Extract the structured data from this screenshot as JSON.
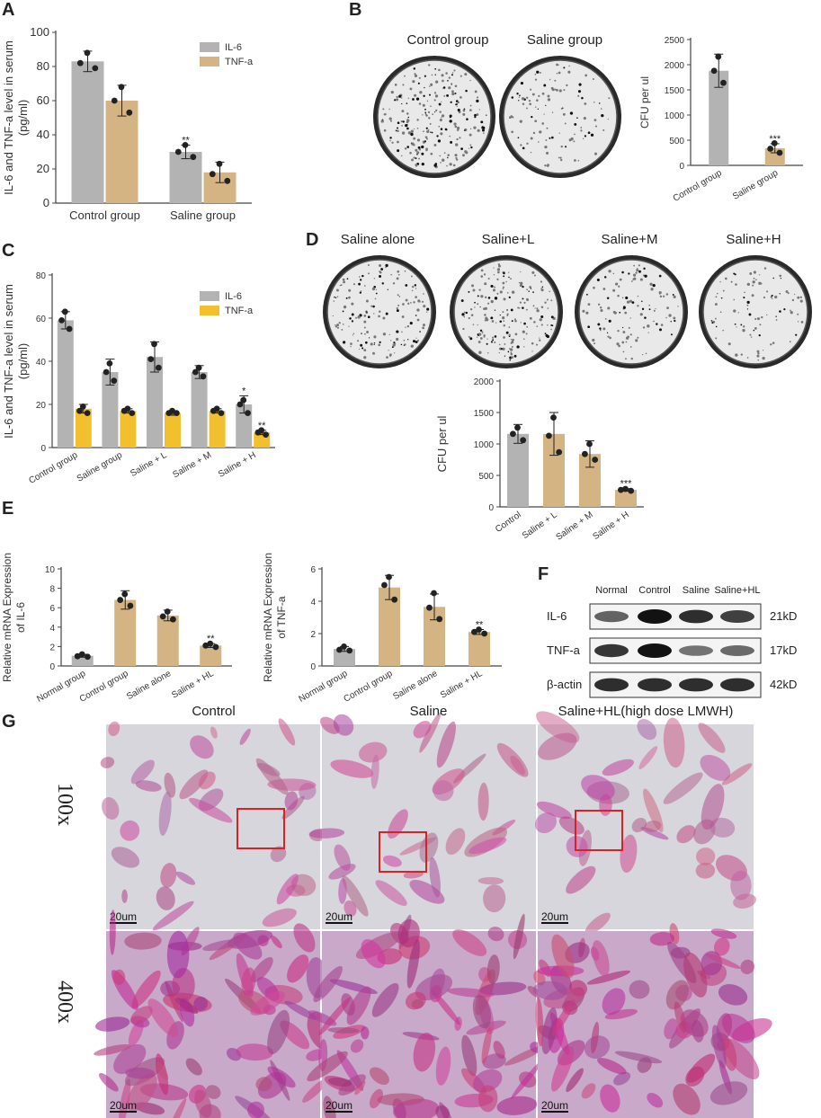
{
  "colors": {
    "gray": "#b3b3b3",
    "gold": "#d4b483",
    "yellow": "#f2c02e",
    "axis": "#444444",
    "red_box": "#e02020"
  },
  "panels": {
    "A": {
      "letter": "A",
      "chart_data": {
        "type": "bar",
        "categories": [
          "Control group",
          "Saline group"
        ],
        "series": [
          {
            "name": "IL-6",
            "values": [
              83,
              30
            ],
            "err": [
              6,
              4
            ],
            "points": [
              [
                88,
                82,
                79
              ],
              [
                34,
                30,
                27
              ]
            ],
            "sig": [
              "",
              "**"
            ]
          },
          {
            "name": "TNF-a",
            "values": [
              60,
              18
            ],
            "err": [
              9,
              6
            ],
            "points": [
              [
                68,
                60,
                53
              ],
              [
                23,
                17,
                13
              ]
            ],
            "sig": [
              "",
              ""
            ]
          }
        ],
        "ylabel": "IL-6 and TNF-a level in serum\n(pg/ml)",
        "ylim": [
          0,
          100
        ],
        "yticks": [
          0,
          20,
          40,
          60,
          80,
          100
        ],
        "legend": "top-right"
      }
    },
    "B": {
      "letter": "B",
      "plate_labels": [
        "Control group",
        "Saline group"
      ],
      "chart_data": {
        "type": "bar",
        "categories": [
          "Control group",
          "Saline group"
        ],
        "series": [
          {
            "name": "",
            "values": [
              1880,
              340
            ],
            "err": [
              330,
              90
            ],
            "points": [
              [
                2160,
                1880,
                1640
              ],
              [
                440,
                330,
                250
              ]
            ],
            "sig": [
              "",
              "***"
            ]
          }
        ],
        "ylabel": "CFU per ul",
        "ylim": [
          0,
          2500
        ],
        "yticks": [
          0,
          500,
          1000,
          1500,
          2000,
          2500
        ]
      }
    },
    "C": {
      "letter": "C",
      "chart_data": {
        "type": "bar",
        "categories": [
          "Control group",
          "Saline group",
          "Saline + L",
          "Saline + M",
          "Saline + H"
        ],
        "series": [
          {
            "name": "IL-6",
            "values": [
              59,
              35,
              42,
              35,
              20
            ],
            "err": [
              4,
              6,
              7,
              3,
              4
            ],
            "points": [
              [
                63,
                59,
                55
              ],
              [
                39,
                35,
                31
              ],
              [
                48,
                41,
                37
              ],
              [
                37,
                35,
                33
              ],
              [
                22,
                20,
                16
              ]
            ],
            "sig": [
              "",
              "",
              "",
              "",
              "*"
            ]
          },
          {
            "name": "TNF-a",
            "values": [
              18,
              17,
              16,
              17,
              7
            ],
            "err": [
              2,
              1,
              1,
              1,
              1
            ],
            "points": [
              [
                19,
                17,
                16
              ],
              [
                18,
                17,
                16
              ],
              [
                17,
                16,
                16
              ],
              [
                18,
                17,
                16
              ],
              [
                8,
                7,
                6
              ]
            ],
            "sig": [
              "",
              "",
              "",
              "",
              "**"
            ]
          }
        ],
        "ylabel": "IL-6 and TNF-a level in serum\n(pg/ml)",
        "ylim": [
          0,
          80
        ],
        "yticks": [
          0,
          20,
          40,
          60,
          80
        ],
        "legend": "top-right"
      }
    },
    "D": {
      "letter": "D",
      "plate_labels": [
        "Saline alone",
        "Saline+L",
        "Saline+M",
        "Saline+H"
      ],
      "chart_data": {
        "type": "bar",
        "categories": [
          "Control",
          "Saline + L",
          "Saline + M",
          "Saline + H"
        ],
        "series": [
          {
            "name": "",
            "values": [
              1160,
              1160,
              840,
              270
            ],
            "err": [
              150,
              340,
              210,
              20
            ],
            "points": [
              [
                1260,
                1160,
                1060
              ],
              [
                1420,
                1130,
                870
              ],
              [
                1000,
                840,
                750
              ],
              [
                285,
                270,
                255
              ]
            ],
            "sig": [
              "",
              "",
              "",
              "***"
            ]
          }
        ],
        "ylabel": "CFU per ul",
        "ylim": [
          0,
          2000
        ],
        "yticks": [
          0,
          500,
          1000,
          1500,
          2000
        ]
      }
    },
    "E": {
      "letter": "E",
      "charts": [
        {
          "type": "bar",
          "categories": [
            "Normal group",
            "Control group",
            "Saline alone",
            "Saline + HL"
          ],
          "series": [
            {
              "name": "",
              "values": [
                1.05,
                6.8,
                5.2,
                2.1
              ],
              "err": [
                0.15,
                0.95,
                0.55,
                0.2
              ],
              "points": [
                [
                  1.2,
                  1.0,
                  0.95
                ],
                [
                  7.4,
                  6.8,
                  6.2
                ],
                [
                  5.6,
                  5.1,
                  4.8
                ],
                [
                  2.3,
                  2.1,
                  1.95
                ]
              ],
              "sig": [
                "",
                "",
                "",
                "**"
              ]
            }
          ],
          "ylabel": "Relative mRNA Expression\nof IL-6",
          "ylim": [
            0,
            10
          ],
          "yticks": [
            0,
            2,
            4,
            6,
            8,
            10
          ]
        },
        {
          "type": "bar",
          "categories": [
            "Normal group",
            "Control group",
            "Saline alone",
            "Saline + HL"
          ],
          "series": [
            {
              "name": "",
              "values": [
                1.05,
                4.85,
                3.65,
                2.1
              ],
              "err": [
                0.15,
                0.75,
                0.8,
                0.15
              ],
              "points": [
                [
                  1.2,
                  1.0,
                  0.95
                ],
                [
                  5.5,
                  5.0,
                  4.1
                ],
                [
                  4.5,
                  3.6,
                  2.9
                ],
                [
                  2.25,
                  2.1,
                  2.0
                ]
              ],
              "sig": [
                "",
                "",
                "",
                "**"
              ]
            }
          ],
          "ylabel": "Relative mRNA Expression\nof TNF-a",
          "ylim": [
            0,
            6
          ],
          "yticks": [
            0,
            2,
            4,
            6
          ]
        }
      ]
    },
    "F": {
      "letter": "F",
      "lanes": [
        "Normal",
        "Control",
        "Saline",
        "Saline+HL"
      ],
      "rows": [
        {
          "label": "IL-6",
          "kd": "21kD",
          "intensity": [
            0.55,
            1.0,
            0.85,
            0.75
          ]
        },
        {
          "label": "TNF-a",
          "kd": "17kD",
          "intensity": [
            0.8,
            1.0,
            0.45,
            0.5
          ]
        },
        {
          "label": "β-actin",
          "kd": "42kD",
          "intensity": [
            0.85,
            0.85,
            0.85,
            0.85
          ]
        }
      ]
    },
    "G": {
      "letter": "G",
      "columns": [
        "Control",
        "Saline",
        "Saline+HL(high dose LMWH)"
      ],
      "rows": [
        "100x",
        "400x"
      ],
      "scale_bar": "20um"
    }
  }
}
